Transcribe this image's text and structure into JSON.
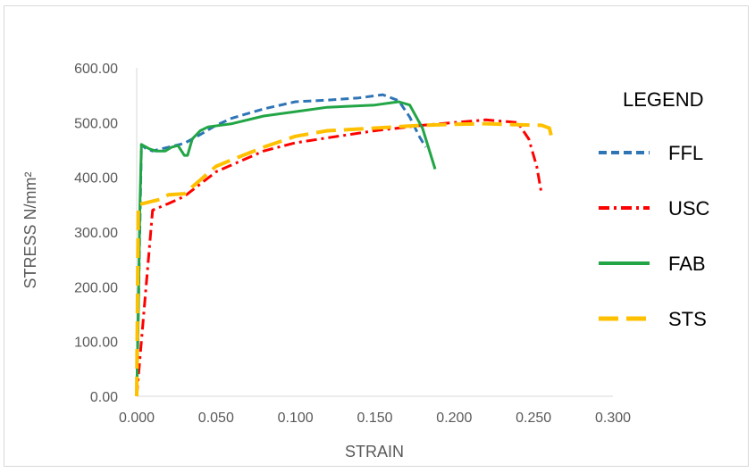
{
  "chart_data": {
    "type": "line",
    "title": "",
    "xlabel": "STRAIN",
    "ylabel": "STRESS N/mm²",
    "xlim": [
      0,
      0.3
    ],
    "ylim": [
      0,
      600
    ],
    "x_ticks": [
      "0.000",
      "0.050",
      "0.100",
      "0.150",
      "0.200",
      "0.250",
      "0.300"
    ],
    "y_ticks": [
      "0.00",
      "100.00",
      "200.00",
      "300.00",
      "400.00",
      "500.00",
      "600.00"
    ],
    "grid": false,
    "legend_title": "LEGEND",
    "legend_position": "right",
    "series": [
      {
        "name": "FFL",
        "color": "#2e75b6",
        "dash": "short-dash",
        "points": [
          [
            0,
            0
          ],
          [
            0.003,
            460
          ],
          [
            0.006,
            452
          ],
          [
            0.01,
            448
          ],
          [
            0.02,
            455
          ],
          [
            0.03,
            462
          ],
          [
            0.04,
            478
          ],
          [
            0.05,
            495
          ],
          [
            0.06,
            508
          ],
          [
            0.08,
            525
          ],
          [
            0.1,
            538
          ],
          [
            0.12,
            541
          ],
          [
            0.14,
            545
          ],
          [
            0.155,
            551
          ],
          [
            0.165,
            540
          ],
          [
            0.172,
            510
          ],
          [
            0.178,
            475
          ],
          [
            0.182,
            455
          ]
        ]
      },
      {
        "name": "USC",
        "color": "#ff0000",
        "dash": "dash-dot",
        "points": [
          [
            0,
            0
          ],
          [
            0.01,
            340
          ],
          [
            0.02,
            352
          ],
          [
            0.03,
            365
          ],
          [
            0.05,
            410
          ],
          [
            0.08,
            448
          ],
          [
            0.1,
            463
          ],
          [
            0.12,
            472
          ],
          [
            0.15,
            485
          ],
          [
            0.18,
            495
          ],
          [
            0.2,
            500
          ],
          [
            0.22,
            505
          ],
          [
            0.24,
            500
          ],
          [
            0.247,
            470
          ],
          [
            0.252,
            420
          ],
          [
            0.255,
            370
          ]
        ]
      },
      {
        "name": "FAB",
        "color": "#21a545",
        "dash": "solid",
        "points": [
          [
            0,
            0
          ],
          [
            0.001,
            150
          ],
          [
            0.002,
            350
          ],
          [
            0.003,
            460
          ],
          [
            0.008,
            452
          ],
          [
            0.012,
            448
          ],
          [
            0.018,
            448
          ],
          [
            0.022,
            455
          ],
          [
            0.026,
            458
          ],
          [
            0.03,
            440
          ],
          [
            0.032,
            440
          ],
          [
            0.035,
            470
          ],
          [
            0.04,
            485
          ],
          [
            0.045,
            492
          ],
          [
            0.06,
            498
          ],
          [
            0.08,
            512
          ],
          [
            0.1,
            520
          ],
          [
            0.12,
            528
          ],
          [
            0.15,
            532
          ],
          [
            0.165,
            538
          ],
          [
            0.172,
            532
          ],
          [
            0.18,
            490
          ],
          [
            0.188,
            415
          ]
        ]
      },
      {
        "name": "STS",
        "color": "#ffc000",
        "dash": "long-dash",
        "points": [
          [
            0,
            0
          ],
          [
            0.001,
            350
          ],
          [
            0.008,
            355
          ],
          [
            0.015,
            360
          ],
          [
            0.02,
            368
          ],
          [
            0.03,
            370
          ],
          [
            0.04,
            395
          ],
          [
            0.05,
            420
          ],
          [
            0.06,
            432
          ],
          [
            0.08,
            455
          ],
          [
            0.1,
            475
          ],
          [
            0.12,
            485
          ],
          [
            0.15,
            490
          ],
          [
            0.18,
            495
          ],
          [
            0.2,
            497
          ],
          [
            0.22,
            498
          ],
          [
            0.24,
            496
          ],
          [
            0.255,
            495
          ],
          [
            0.26,
            490
          ],
          [
            0.262,
            465
          ]
        ]
      }
    ]
  }
}
